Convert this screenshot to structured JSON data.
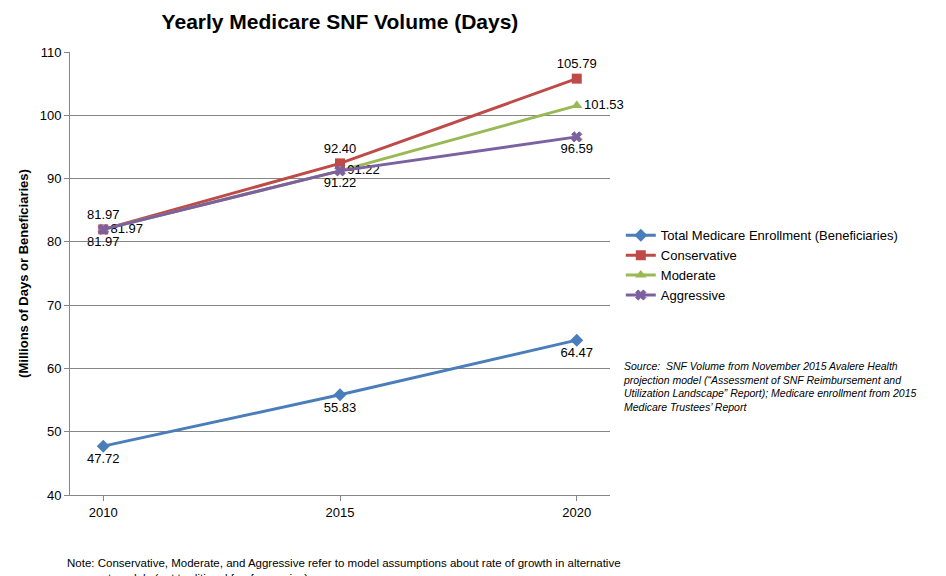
{
  "chart_data": {
    "type": "line",
    "title": "Yearly Medicare SNF Volume (Days)",
    "y_label": "(Millions of Days or Beneficiaries)",
    "categories": [
      "2010",
      "2015",
      "2020"
    ],
    "series": [
      {
        "name": "Total Medicare Enrollment (Beneficiaries)",
        "color": "#4a7ebb",
        "marker": "diamond",
        "values": [
          47.72,
          55.83,
          64.47
        ],
        "value_labels": [
          "47.72",
          "55.83",
          "64.47"
        ]
      },
      {
        "name": "Conservative",
        "color": "#be4b48",
        "marker": "square",
        "values": [
          81.97,
          92.4,
          105.79
        ],
        "value_labels": [
          "81.97",
          "92.40",
          "105.79"
        ]
      },
      {
        "name": "Moderate",
        "color": "#98b954",
        "marker": "triangle-up",
        "values": [
          81.97,
          91.22,
          101.53
        ],
        "value_labels": [
          "81.97",
          "91.22",
          "101.53"
        ]
      },
      {
        "name": "Aggressive",
        "color": "#7d60a0",
        "marker": "x",
        "values": [
          81.97,
          91.22,
          96.59
        ],
        "value_labels": [
          "81.97",
          "91.22",
          "96.59"
        ]
      }
    ],
    "ylim": [
      40,
      110
    ],
    "yticks": [
      40,
      50,
      60,
      70,
      80,
      90,
      100,
      110
    ],
    "grid": true,
    "legend": "right",
    "data_labels": true,
    "annotations": [
      [
        "Source:  SNF Volume from November 2015 Avalere Health",
        "projection model (“Assessment of SNF Reimbursement and",
        "Utilization Landscape” Report); Medicare enrollment from 2015",
        "Medicare Trustees’ Report"
      ],
      [
        "Note: Conservative, Moderate, and Aggressive refer to model assumptions about rate of growth in alternative",
        "payment models (not traditional fee-for-service)"
      ]
    ]
  }
}
